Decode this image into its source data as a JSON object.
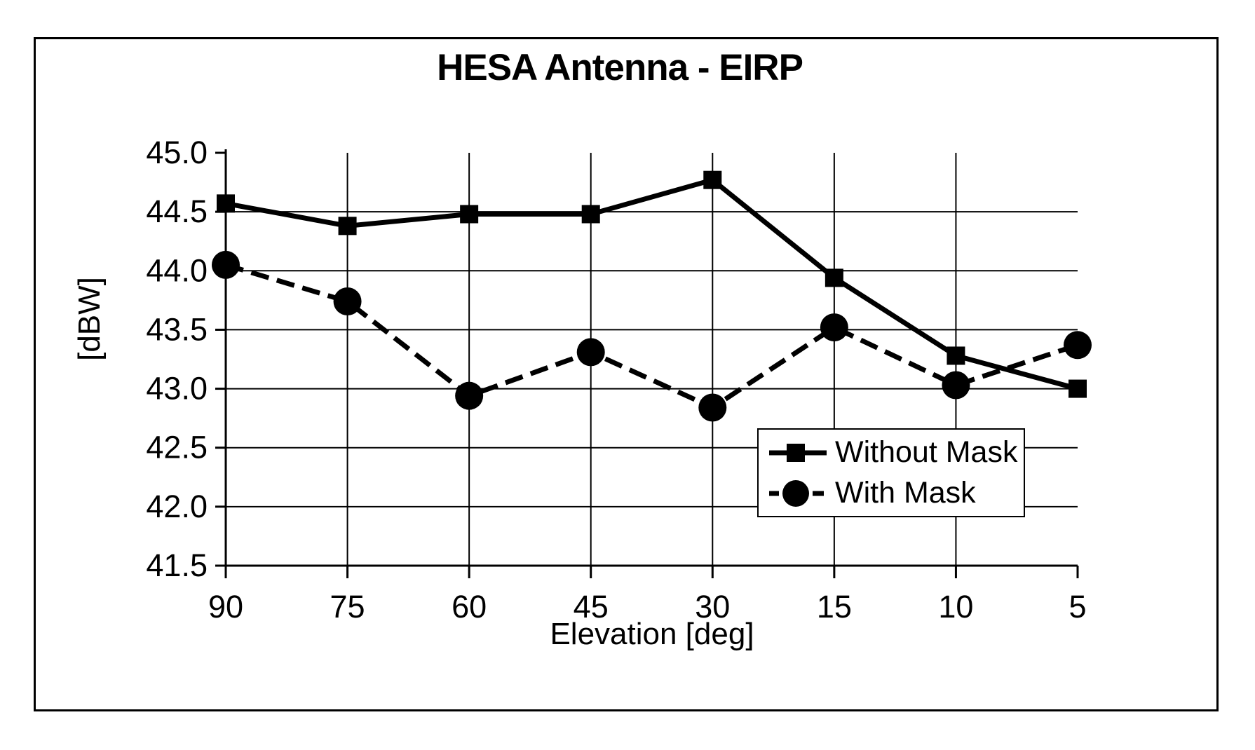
{
  "chart_data": {
    "type": "line",
    "title": "HESA Antenna - EIRP",
    "xlabel": "Elevation [deg]",
    "ylabel": "[dBW]",
    "categories": [
      "90",
      "75",
      "60",
      "45",
      "30",
      "15",
      "10",
      "5"
    ],
    "y_ticks": [
      "45.0",
      "44.5",
      "44.0",
      "43.5",
      "43.0",
      "42.5",
      "42.0",
      "41.5"
    ],
    "ylim": [
      41.5,
      45.0
    ],
    "grid": true,
    "legend_position": "inside-bottom-right",
    "series": [
      {
        "name": "Without Mask",
        "marker": "square",
        "line": "solid",
        "values": [
          44.57,
          44.38,
          44.48,
          44.48,
          44.77,
          43.94,
          43.28,
          43.0
        ]
      },
      {
        "name": "With Mask",
        "marker": "circle",
        "line": "dashed",
        "values": [
          44.05,
          43.74,
          42.94,
          43.31,
          42.84,
          43.52,
          43.03,
          43.37
        ]
      }
    ],
    "colors": {
      "foreground": "#000000",
      "background": "#ffffff"
    }
  }
}
